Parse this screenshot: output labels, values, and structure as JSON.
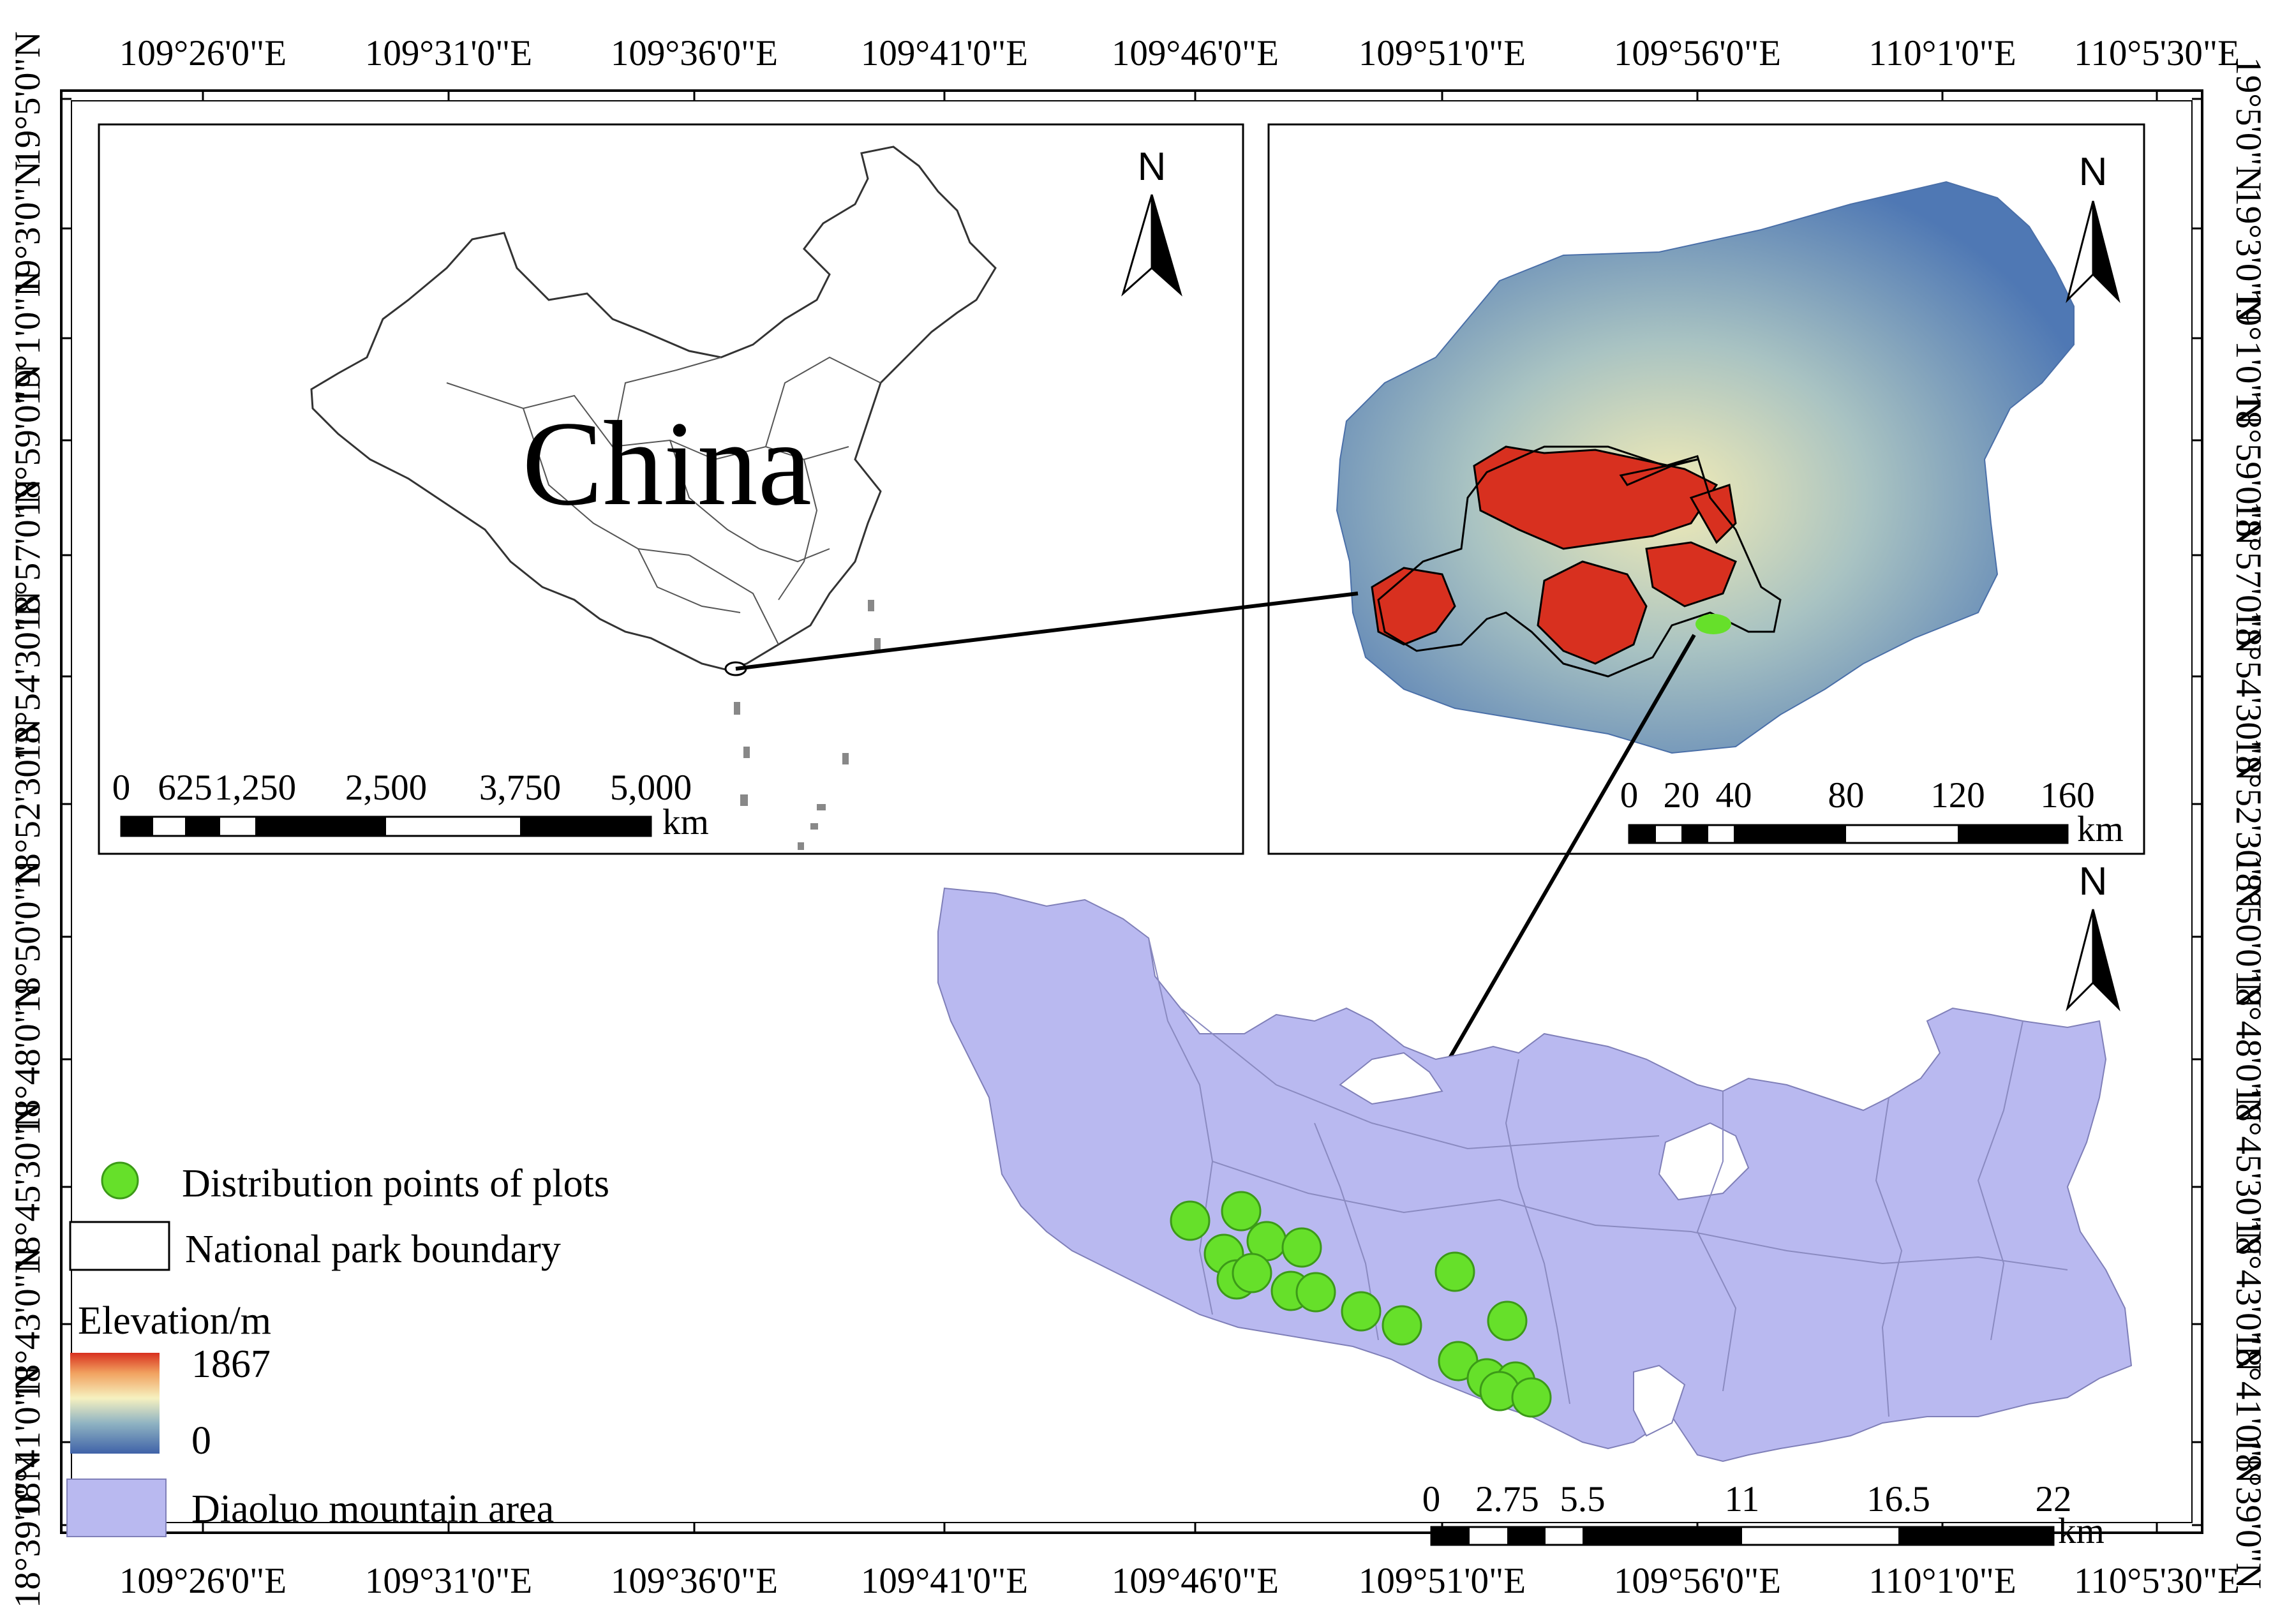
{
  "graticule": {
    "longitudes": [
      "109°26'0\"E",
      "109°31'0\"E",
      "109°36'0\"E",
      "109°41'0\"E",
      "109°46'0\"E",
      "109°51'0\"E",
      "109°56'0\"E",
      "110°1'0\"E",
      "110°5'30\"E"
    ],
    "latitudes_left": [
      "19°5'0\"N",
      "19°3'0\"N",
      "19°1'0\"N",
      "18°59'0\"N",
      "18°57'0\"N",
      "18°54'30\"N",
      "18°52'30\"N",
      "18°50'0\"N",
      "18°48'0\"N",
      "18°45'30\"N",
      "18°43'0\"N",
      "18°41'0\"N",
      "18°39'0\"N"
    ],
    "latitudes_right": [
      "19°5'0\"N",
      "19°3'0\"N",
      "19°1'0\"N",
      "18°59'0\"N",
      "18°57'0\"N",
      "18°54'30\"N",
      "18°52'30\"N",
      "18°50'0\"N",
      "18°48'0\"N",
      "18°45'30\"N",
      "18°43'0\"N",
      "18°41'0\"N",
      "18°39'0\"N"
    ]
  },
  "china_panel": {
    "label": "China",
    "north": "N",
    "scale_ticks": [
      "0",
      "625",
      "1,250",
      "2,500",
      "3,750",
      "5,000"
    ],
    "scale_unit": "km"
  },
  "hainan_panel": {
    "north": "N",
    "scale_ticks": [
      "0",
      "20",
      "40",
      "80",
      "120",
      "160"
    ],
    "scale_unit": "km"
  },
  "diaoluo_panel": {
    "north": "N",
    "scale_ticks": [
      "0",
      "2.75",
      "5.5",
      "11",
      "16.5",
      "22"
    ],
    "scale_unit": "km"
  },
  "legend": {
    "plots": "Distribution points of plots",
    "boundary": "National park boundary",
    "elevation_title": "Elevation/m",
    "elevation_max": "1867",
    "elevation_min": "0",
    "area": "Diaoluo mountain area"
  },
  "colors": {
    "plot_point": "#66e02a",
    "diaoluo_fill": "#b9b9f0",
    "low_elev": "#4a73b2",
    "mid_elev": "#f3edb8",
    "high_elev": "#d8301f"
  }
}
